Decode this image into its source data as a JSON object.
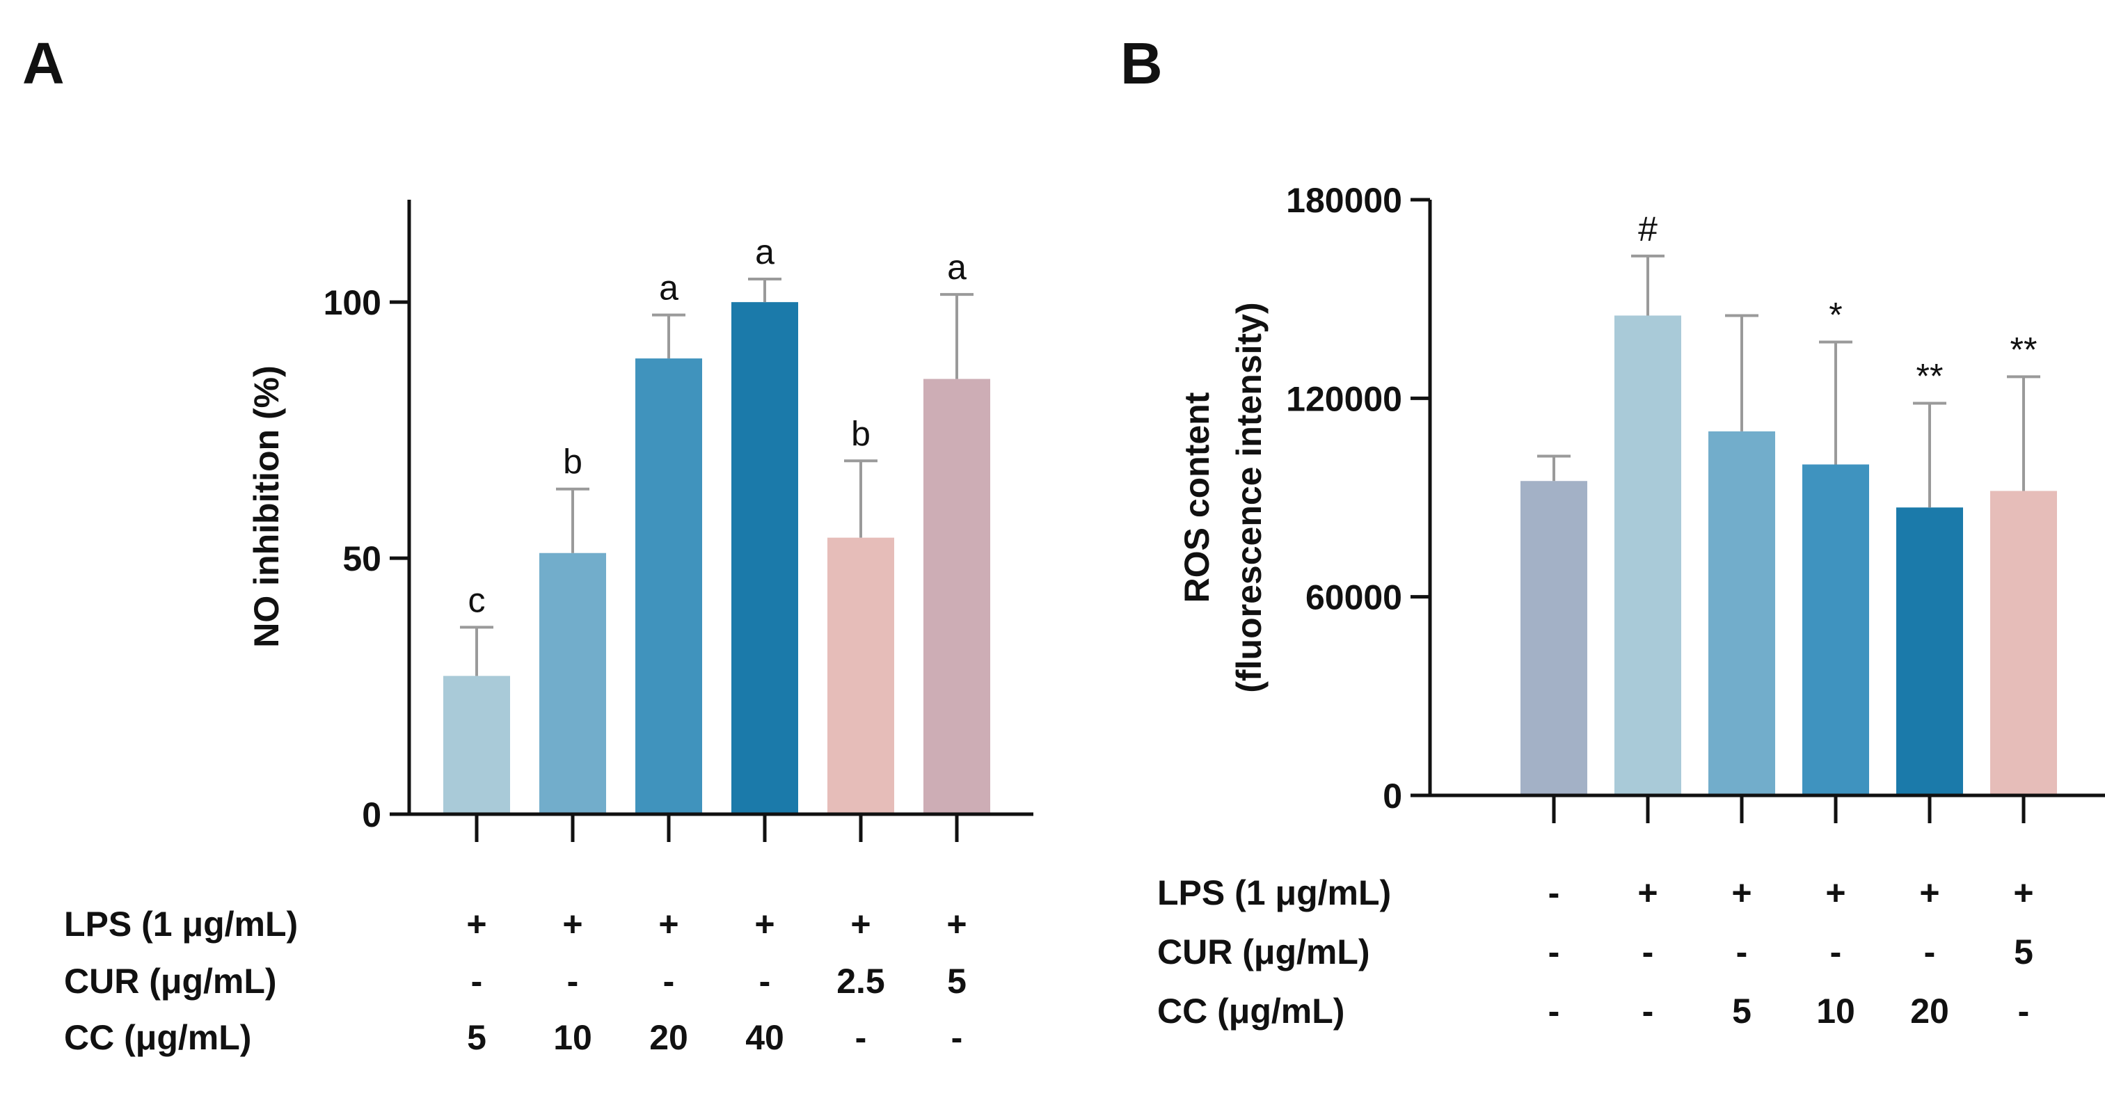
{
  "panels": {
    "a": "A",
    "b": "B"
  },
  "chart_data": [
    {
      "type": "bar",
      "panel": "A",
      "ylabel": "NO inhibition (%)",
      "ylim": [
        0,
        120
      ],
      "yticks": [
        0,
        50,
        100
      ],
      "values": [
        27,
        51,
        89,
        100,
        54,
        85
      ],
      "errors": [
        9.5,
        12.5,
        8.5,
        4.5,
        15,
        16.5
      ],
      "significance": [
        "c",
        "b",
        "a",
        "a",
        "b",
        "a"
      ],
      "colors": [
        "#A9CAD8",
        "#72ADCB",
        "#4093BD",
        "#1B7AAA",
        "#E6BDB9",
        "#CDADB5"
      ],
      "conditions": [
        {
          "label": "LPS (1 μg/mL)",
          "values": [
            "+",
            "+",
            "+",
            "+",
            "+",
            "+"
          ]
        },
        {
          "label": "CUR (μg/mL)",
          "values": [
            "-",
            "-",
            "-",
            "-",
            "2.5",
            "5"
          ]
        },
        {
          "label": "CC (μg/mL)",
          "values": [
            "5",
            "10",
            "20",
            "40",
            "-",
            "-"
          ]
        }
      ]
    },
    {
      "type": "bar",
      "panel": "B",
      "ylabel": "ROS content (fluorescence intensity)",
      "ylabel_lines": [
        "ROS content",
        "(fluorescence intensity)"
      ],
      "ylim": [
        0,
        180000
      ],
      "yticks": [
        0,
        60000,
        120000,
        180000
      ],
      "values": [
        95000,
        145000,
        110000,
        100000,
        87000,
        92000
      ],
      "errors": [
        7500,
        18000,
        35000,
        37000,
        31500,
        34500
      ],
      "significance": [
        "",
        "#",
        "",
        "*",
        "**",
        "**"
      ],
      "colors": [
        "#A3B1C6",
        "#A9CAD8",
        "#72ADCB",
        "#3F93BF",
        "#1B7AAA",
        "#E6BDB9"
      ],
      "conditions": [
        {
          "label": "LPS (1 μg/mL)",
          "values": [
            "-",
            "+",
            "+",
            "+",
            "+",
            "+"
          ]
        },
        {
          "label": "CUR (μg/mL)",
          "values": [
            "-",
            "-",
            "-",
            "-",
            "-",
            "5"
          ]
        },
        {
          "label": "CC (μg/mL)",
          "values": [
            "-",
            "-",
            "5",
            "10",
            "20",
            "-"
          ]
        }
      ]
    }
  ]
}
